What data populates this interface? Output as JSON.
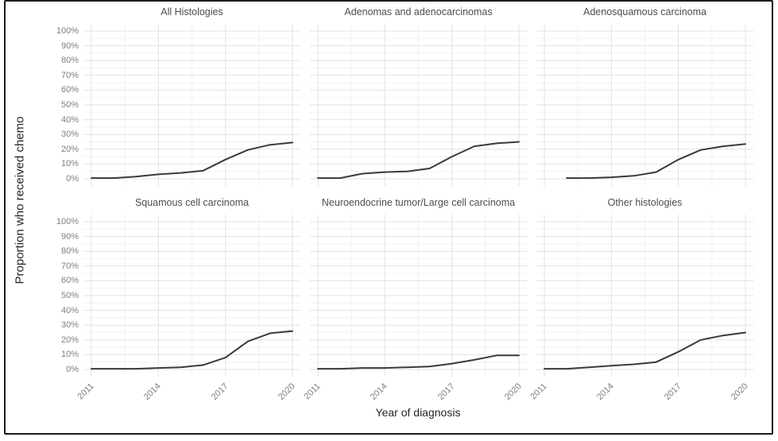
{
  "chart_data": {
    "type": "line",
    "facet_layout": {
      "rows": 2,
      "cols": 3
    },
    "xlabel": "Year of diagnosis",
    "ylabel": "Proportion who received chemo",
    "x": [
      2011,
      2012,
      2013,
      2014,
      2015,
      2016,
      2017,
      2018,
      2019,
      2020
    ],
    "xlim": [
      2011,
      2020
    ],
    "ylim": [
      0,
      100
    ],
    "x_tick_years": [
      2011,
      2014,
      2017,
      2020
    ],
    "x_tick_labels": [
      "2011",
      "2014",
      "2017",
      "2020"
    ],
    "y_tick_values": [
      0,
      10,
      20,
      30,
      40,
      50,
      60,
      70,
      80,
      90,
      100
    ],
    "y_tick_labels": [
      "0%",
      "10%",
      "20%",
      "30%",
      "40%",
      "50%",
      "60%",
      "70%",
      "80%",
      "90%",
      "100%"
    ],
    "grid": {
      "major": true,
      "minor": true,
      "minor_y_step": 5,
      "minor_x_offsets": [
        2012.5,
        2015.5,
        2018.5
      ]
    },
    "legend": "none",
    "panels": [
      {
        "title": "All Histologies",
        "values": [
          0.5,
          0.5,
          1.5,
          3,
          4,
          5.5,
          13,
          19.5,
          23,
          24.5
        ]
      },
      {
        "title": "Adenomas and adenocarcinomas",
        "values": [
          0.5,
          0.5,
          3.5,
          4.5,
          5,
          7,
          15,
          22,
          24,
          25
        ]
      },
      {
        "title": "Adenosquamous carcinoma",
        "values": [
          null,
          0.5,
          0.5,
          1,
          2,
          4.5,
          13,
          19.5,
          22,
          23.5
        ]
      },
      {
        "title": "Squamous cell carcinoma",
        "values": [
          0.5,
          0.5,
          0.5,
          1,
          1.5,
          3,
          8,
          19,
          24.5,
          26
        ]
      },
      {
        "title": "Neuroendocrine tumor/Large cell carcinoma",
        "values": [
          0.5,
          0.5,
          1,
          1,
          1.5,
          2,
          4,
          6.5,
          9.5,
          9.5
        ]
      },
      {
        "title": "Other histologies",
        "values": [
          0.5,
          0.5,
          1.5,
          2.5,
          3.5,
          5,
          12,
          20,
          23,
          25
        ]
      }
    ],
    "colors": {
      "line": "#3a3a3a",
      "grid_major": "#e2e2e2",
      "grid_minor": "#f2f2f2",
      "tick_text": "#7f7f7f",
      "panel_title_text": "#4d4d4d",
      "axis_title_text": "#262626",
      "frame_border": "#1b1b1b",
      "background": "#ffffff"
    }
  }
}
